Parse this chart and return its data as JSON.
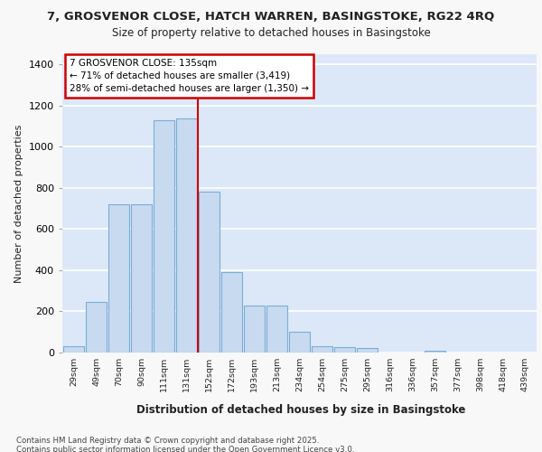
{
  "title_line1": "7, GROSVENOR CLOSE, HATCH WARREN, BASINGSTOKE, RG22 4RQ",
  "title_line2": "Size of property relative to detached houses in Basingstoke",
  "xlabel": "Distribution of detached houses by size in Basingstoke",
  "ylabel": "Number of detached properties",
  "categories": [
    "29sqm",
    "49sqm",
    "70sqm",
    "90sqm",
    "111sqm",
    "131sqm",
    "152sqm",
    "172sqm",
    "193sqm",
    "213sqm",
    "234sqm",
    "254sqm",
    "275sqm",
    "295sqm",
    "316sqm",
    "336sqm",
    "357sqm",
    "377sqm",
    "398sqm",
    "418sqm",
    "439sqm"
  ],
  "values": [
    30,
    245,
    720,
    720,
    1130,
    1140,
    780,
    390,
    230,
    230,
    100,
    30,
    25,
    20,
    0,
    0,
    10,
    0,
    0,
    0,
    0
  ],
  "bar_color": "#c8daf0",
  "bar_edge_color": "#7aadd4",
  "vline_x": 5.5,
  "vline_color": "#cc0000",
  "annotation_title": "7 GROSVENOR CLOSE: 135sqm",
  "annotation_line1": "← 71% of detached houses are smaller (3,419)",
  "annotation_line2": "28% of semi-detached houses are larger (1,350) →",
  "annotation_box_color": "#cc0000",
  "ylim": [
    0,
    1450
  ],
  "yticks": [
    0,
    200,
    400,
    600,
    800,
    1000,
    1200,
    1400
  ],
  "plot_bg_color": "#dce8f8",
  "fig_bg_color": "#f8f8f8",
  "grid_color": "#ffffff",
  "footnote_line1": "Contains HM Land Registry data © Crown copyright and database right 2025.",
  "footnote_line2": "Contains public sector information licensed under the Open Government Licence v3.0."
}
